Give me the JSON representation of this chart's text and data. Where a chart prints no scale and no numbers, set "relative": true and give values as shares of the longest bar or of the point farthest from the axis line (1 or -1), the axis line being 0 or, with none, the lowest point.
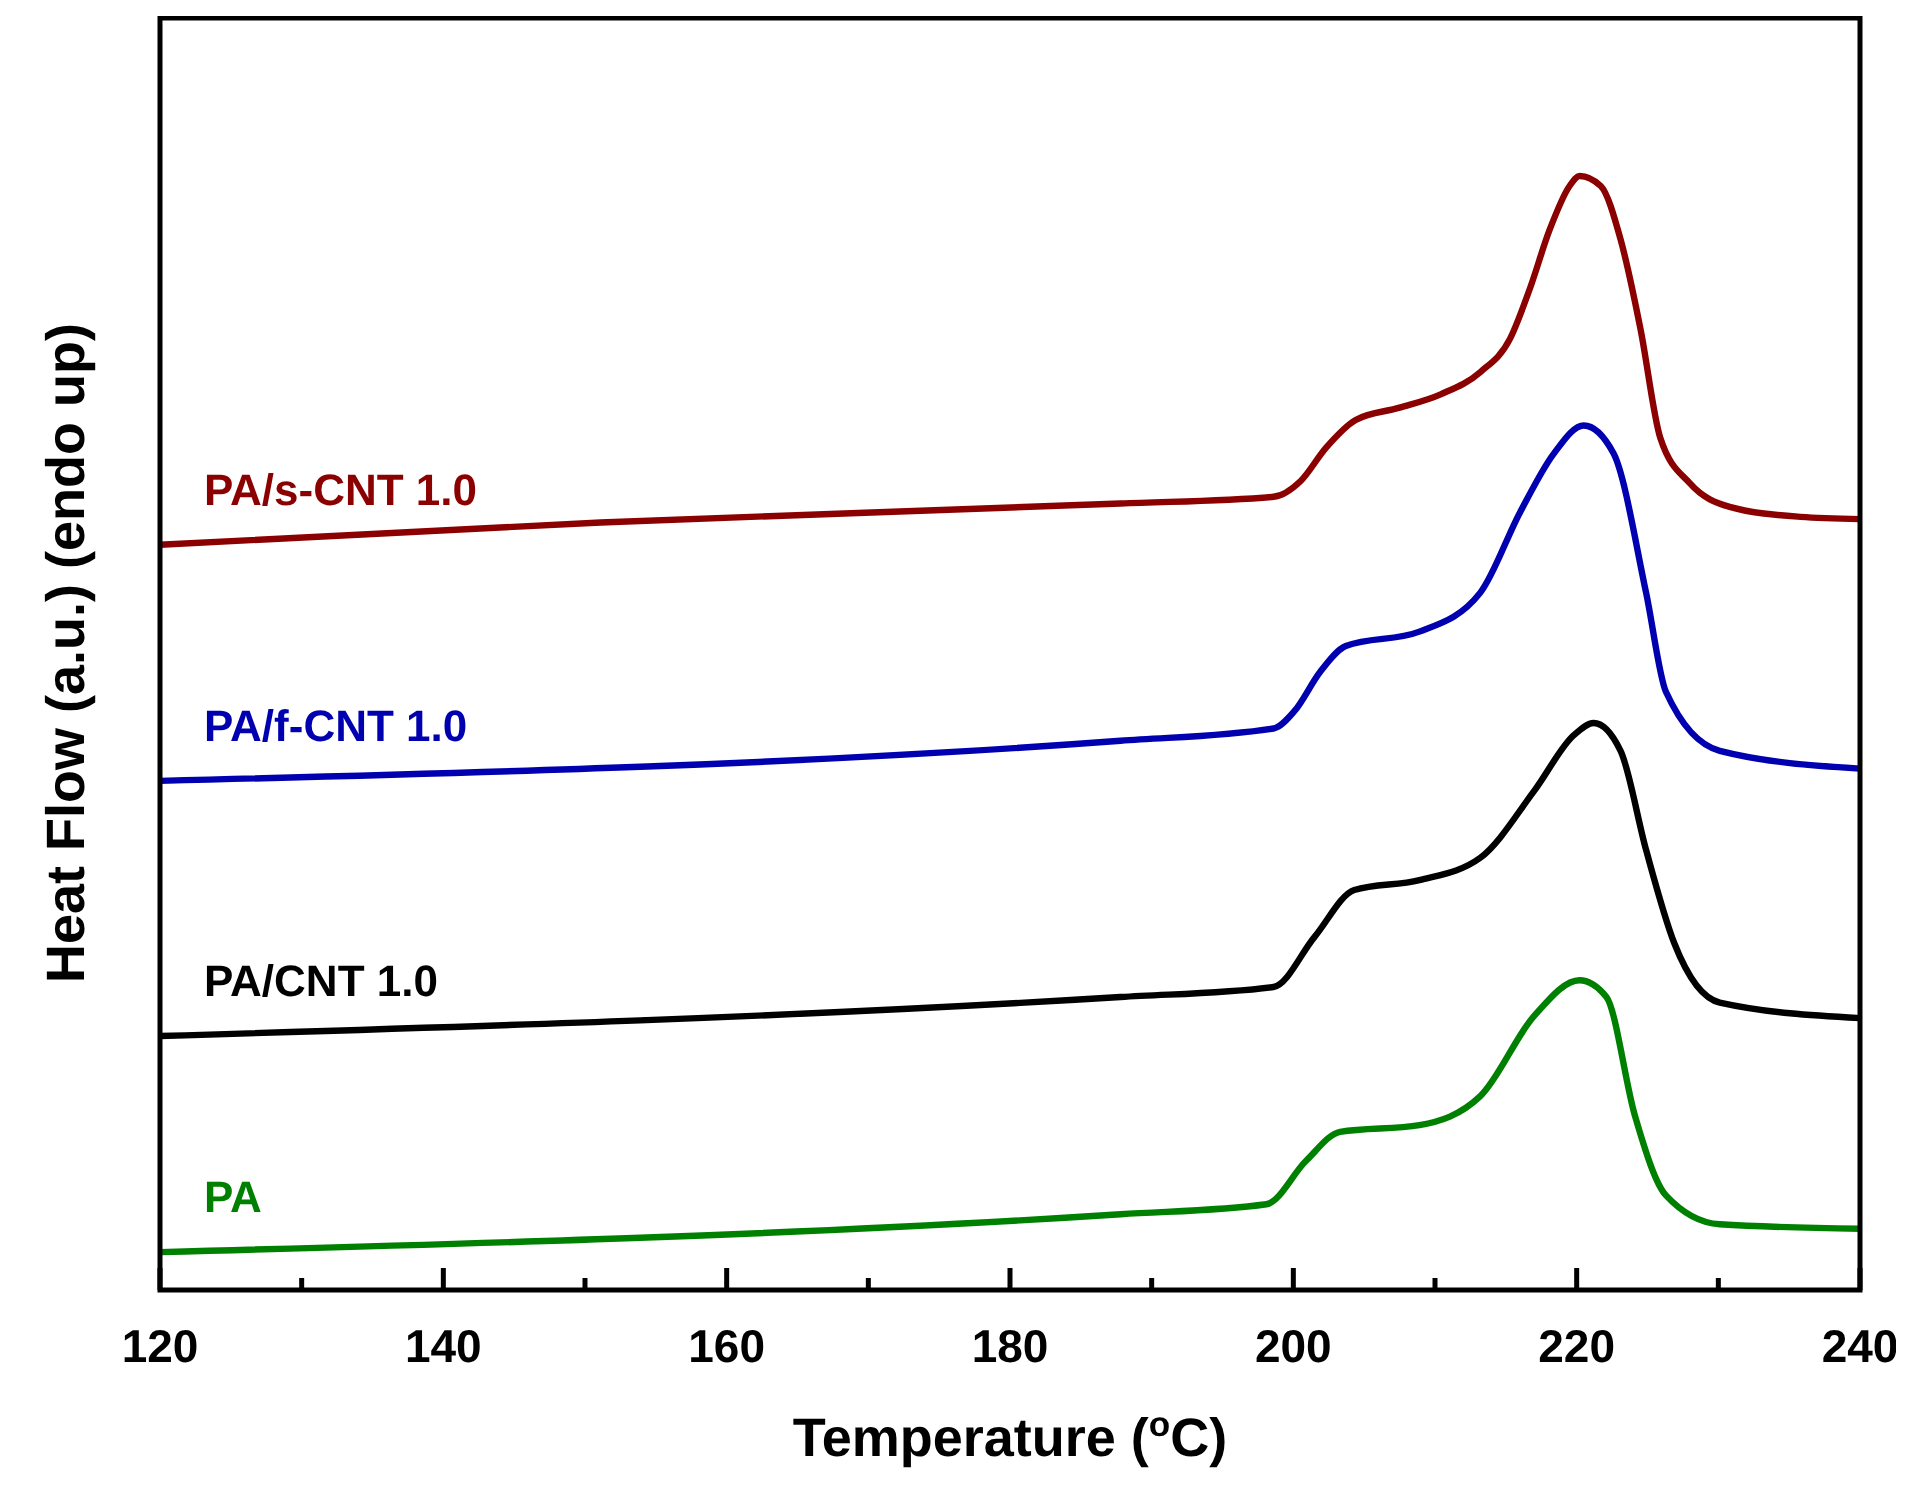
{
  "chart_data": {
    "type": "line",
    "relative": true,
    "xlabel": "Temperature ($^{o}$C)",
    "ylabel": "Heat Flow (a.u.) (endo up)",
    "xlim": [
      120,
      240
    ],
    "xticks": [
      120,
      {
        "value": 130,
        "label": null
      },
      140,
      {
        "value": 150,
        "label": null
      },
      160,
      {
        "value": 170,
        "label": null
      },
      180,
      {
        "value": 190,
        "label": null
      },
      200,
      {
        "value": 210,
        "label": null
      },
      220,
      {
        "value": 230,
        "label": null
      },
      240
    ],
    "grid": false,
    "marker": "none",
    "line_style": "solid",
    "series": [
      {
        "name": "PA",
        "color": "#008000",
        "x": [
          120,
          187.8,
          198.1,
          200.9,
          203.3,
          208.9,
          213.2,
          217,
          220.2,
          222.1,
          224.1,
          226.3,
          230.1,
          240
        ],
        "values": [
          0.034,
          0.068,
          0.077,
          0.116,
          0.142,
          0.148,
          0.174,
          0.246,
          0.278,
          0.263,
          0.157,
          0.085,
          0.059,
          0.055
        ]
      },
      {
        "name": "PA/CNT 1.0",
        "color": "#000000",
        "x": [
          120,
          187.8,
          198.6,
          201.5,
          204.3,
          208.9,
          213.2,
          217,
          219.8,
          221.2,
          223.1,
          224.9,
          226.9,
          230.1,
          240
        ],
        "values": [
          0.228,
          0.263,
          0.272,
          0.317,
          0.359,
          0.368,
          0.388,
          0.448,
          0.498,
          0.509,
          0.484,
          0.395,
          0.311,
          0.258,
          0.244
        ]
      },
      {
        "name": "PA/f-CNT 1.0",
        "color": "#0000b0",
        "x": [
          120,
          187.8,
          198.6,
          200.1,
          201.9,
          203.7,
          208.9,
          213.2,
          216,
          218.4,
          220.5,
          222.6,
          224.9,
          226.3,
          230.1,
          240
        ],
        "values": [
          0.457,
          0.493,
          0.504,
          0.52,
          0.555,
          0.578,
          0.591,
          0.626,
          0.698,
          0.751,
          0.776,
          0.751,
          0.626,
          0.537,
          0.484,
          0.468
        ]
      },
      {
        "name": "PA/s-CNT 1.0",
        "color": "#8b0000",
        "x": [
          120,
          151.1,
          187.8,
          198.6,
          200.5,
          202.3,
          204.4,
          207.5,
          210.4,
          213.2,
          215.3,
          216.7,
          218.1,
          219.5,
          220.2,
          221.7,
          223.1,
          224.5,
          225.9,
          228,
          230.8,
          235.8,
          240
        ],
        "values": [
          0.669,
          0.689,
          0.706,
          0.712,
          0.726,
          0.756,
          0.781,
          0.792,
          0.804,
          0.824,
          0.854,
          0.899,
          0.952,
          0.991,
          1,
          0.991,
          0.943,
          0.863,
          0.765,
          0.724,
          0.703,
          0.694,
          0.692
        ]
      }
    ]
  }
}
